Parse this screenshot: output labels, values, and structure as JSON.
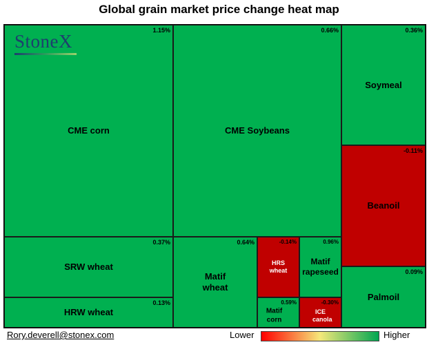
{
  "chart_data": {
    "type": "treemap",
    "title": "Global grain market price change heat map",
    "brand": "StoneX",
    "contact": "Rory.deverell@stonex.com",
    "legend": {
      "low_label": "Lower",
      "high_label": "Higher",
      "low_color": "#ff0000",
      "mid_color": "#f5e87a",
      "high_color": "#00a651"
    },
    "colors": {
      "positive": "#00b050",
      "negative": "#c00000"
    },
    "items": [
      {
        "name": "CME corn",
        "change_pct": 1.15,
        "label": "1.15%"
      },
      {
        "name": "CME Soybeans",
        "change_pct": 0.66,
        "label": "0.66%"
      },
      {
        "name": "Soymeal",
        "change_pct": 0.36,
        "label": "0.36%"
      },
      {
        "name": "Beanoil",
        "change_pct": -0.11,
        "label": "-0.11%"
      },
      {
        "name": "SRW wheat",
        "change_pct": 0.37,
        "label": "0.37%"
      },
      {
        "name": "HRW wheat",
        "change_pct": 0.13,
        "label": "0.13%"
      },
      {
        "name": "Matif wheat",
        "change_pct": 0.64,
        "label": "0.64%"
      },
      {
        "name": "HRS wheat",
        "change_pct": -0.14,
        "label": "-0.14%"
      },
      {
        "name": "Matif rapeseed",
        "change_pct": 0.96,
        "label": "0.96%"
      },
      {
        "name": "Matif corn",
        "change_pct": 0.59,
        "label": "0.59%"
      },
      {
        "name": "ICE canola",
        "change_pct": -0.3,
        "label": "-0.30%"
      },
      {
        "name": "Palmoil",
        "change_pct": 0.09,
        "label": "0.09%"
      }
    ]
  }
}
